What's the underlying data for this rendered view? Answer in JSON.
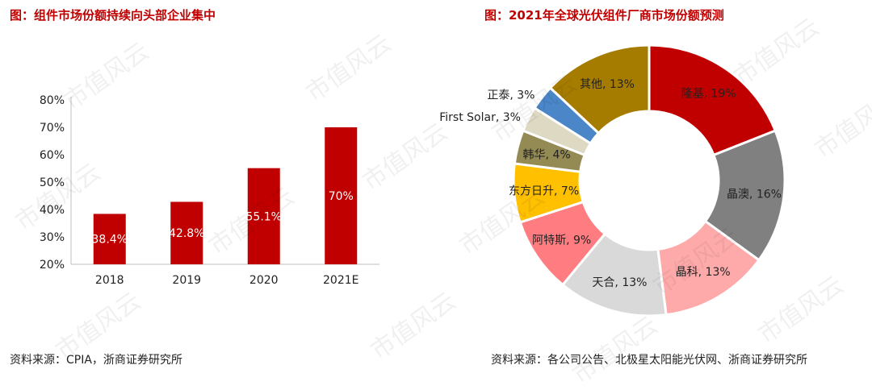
{
  "watermark": "市值风云",
  "left_panel": {
    "title": "图：组件市场份额持续向头部企业集中",
    "source": "资料来源：CPIA，浙商证券研究所"
  },
  "right_panel": {
    "title": "图：2021年全球光伏组件厂商市场份额预测",
    "source": "资料来源：各公司公告、北极星太阳能光伏网、浙商证券研究所"
  },
  "chart_data": [
    {
      "type": "bar",
      "categories": [
        "2018",
        "2019",
        "2020",
        "2021E"
      ],
      "values": [
        38.4,
        42.8,
        55.1,
        70
      ],
      "value_labels": [
        "38.4%",
        "42.8%",
        "55.1%",
        "70%"
      ],
      "ytick_labels": [
        "20%",
        "30%",
        "40%",
        "50%",
        "60%",
        "70%",
        "80%"
      ],
      "yticks": [
        20,
        30,
        40,
        50,
        60,
        70,
        80
      ],
      "ylim": [
        20,
        80
      ],
      "bar_color": "#c00000",
      "grid": false,
      "title": "",
      "xlabel": "",
      "ylabel": ""
    },
    {
      "type": "pie",
      "donut": true,
      "slices": [
        {
          "label": "隆基, 19%",
          "value": 19,
          "color": "#c00000"
        },
        {
          "label": "晶澳, 16%",
          "value": 16,
          "color": "#808080"
        },
        {
          "label": "晶科, 13%",
          "value": 13,
          "color": "#ffaaaa"
        },
        {
          "label": "天合, 13%",
          "value": 13,
          "color": "#d9d9d9"
        },
        {
          "label": "阿特斯, 9%",
          "value": 9,
          "color": "#ff7c80"
        },
        {
          "label": "东方日升, 7%",
          "value": 7,
          "color": "#ffc000"
        },
        {
          "label": "韩华, 4%",
          "value": 4,
          "color": "#948a54"
        },
        {
          "label": "First Solar, 3%",
          "value": 3,
          "color": "#ddd9c3"
        },
        {
          "label": "正泰, 3%",
          "value": 3,
          "color": "#4a86c8"
        },
        {
          "label": "其他, 13%",
          "value": 13,
          "color": "#a67c00"
        }
      ]
    }
  ]
}
